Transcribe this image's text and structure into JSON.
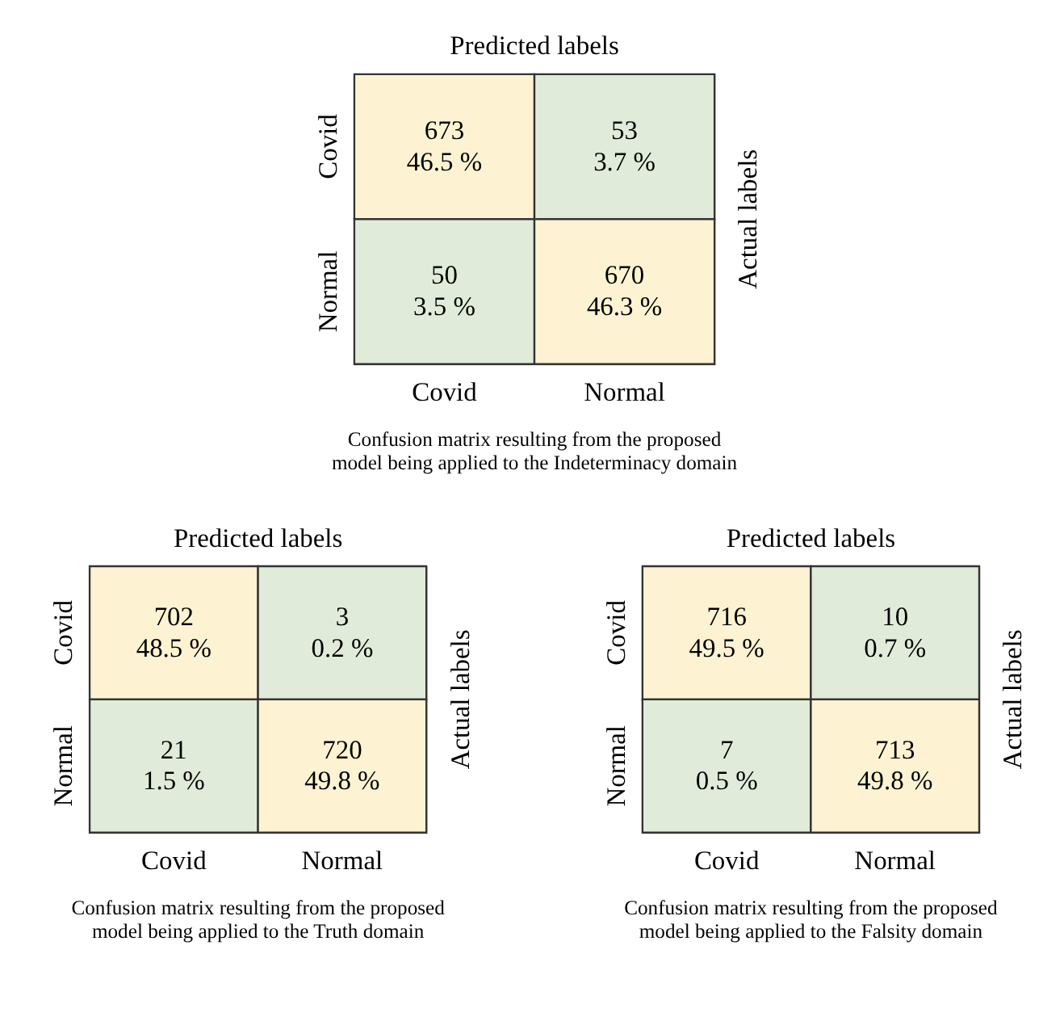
{
  "chart_data": [
    {
      "type": "heatmap",
      "xlabel": "Predicted labels",
      "ylabel": "Actual labels",
      "categories": [
        "Covid",
        "Normal"
      ],
      "y_categories": [
        "Covid",
        "Normal"
      ],
      "cells": [
        [
          673,
          53
        ],
        [
          50,
          670
        ]
      ],
      "data_labels": true,
      "colors": [
        [
          "#fdf3d2",
          "#e1ebd9"
        ],
        [
          "#e1ebd9",
          "#fdf3d2"
        ]
      ],
      "annotations": [
        "46.5 %",
        "3.7 %",
        "3.5 %",
        "46.3 %",
        "Confusion matrix resulting from the proposed\nmodel being applied to the Indeterminacy domain"
      ]
    },
    {
      "type": "heatmap",
      "xlabel": "Predicted labels",
      "ylabel": "Actual labels",
      "categories": [
        "Covid",
        "Normal"
      ],
      "y_categories": [
        "Covid",
        "Normal"
      ],
      "cells": [
        [
          702,
          3
        ],
        [
          21,
          720
        ]
      ],
      "data_labels": true,
      "colors": [
        [
          "#fdf3d2",
          "#e1ebd9"
        ],
        [
          "#e1ebd9",
          "#fdf3d2"
        ]
      ],
      "annotations": [
        "48.5 %",
        "0.2 %",
        "1.5 %",
        "49.8 %",
        "Confusion matrix resulting from the proposed\nmodel being applied to the Truth domain"
      ]
    },
    {
      "type": "heatmap",
      "xlabel": "Predicted labels",
      "ylabel": "Actual labels",
      "categories": [
        "Covid",
        "Normal"
      ],
      "y_categories": [
        "Covid",
        "Normal"
      ],
      "cells": [
        [
          716,
          10
        ],
        [
          7,
          713
        ]
      ],
      "data_labels": true,
      "colors": [
        [
          "#fdf3d2",
          "#e1ebd9"
        ],
        [
          "#e1ebd9",
          "#fdf3d2"
        ]
      ],
      "annotations": [
        "49.5 %",
        "0.7 %",
        "0.5 %",
        "49.8 %",
        "Confusion matrix resulting from the proposed\nmodel being applied to the  Falsity domain"
      ]
    }
  ]
}
